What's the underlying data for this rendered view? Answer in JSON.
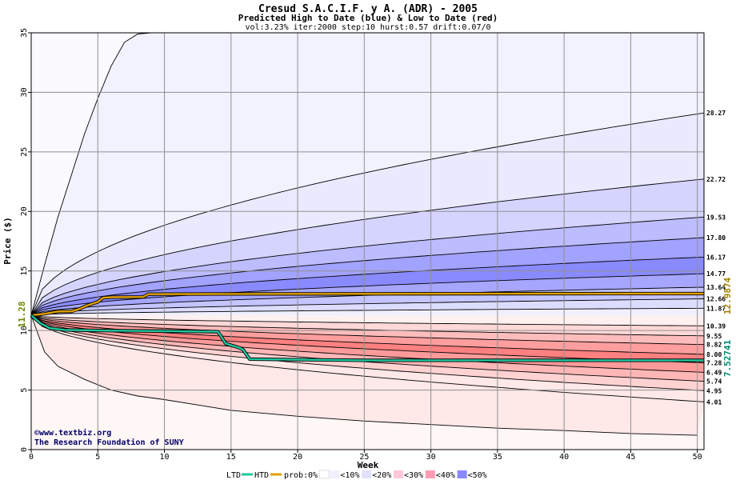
{
  "chart_data": {
    "type": "area",
    "title": "Cresud S.A.C.I.F. y A. (ADR) - 2005",
    "subtitle": "Predicted High to Date (blue) &  Low to Date (red)",
    "params": "vol:3.23% iter:2000 step:10 hurst:0.57 drift:0.07/0",
    "xlabel": "Week",
    "ylabel": "Price ($)",
    "xlim": [
      0,
      50.5
    ],
    "ylim": [
      0,
      35
    ],
    "x_ticks": [
      0,
      5,
      10,
      15,
      20,
      25,
      30,
      35,
      40,
      45,
      50
    ],
    "y_ticks": [
      0,
      5,
      10,
      15,
      20,
      25,
      30,
      35
    ],
    "grid": true,
    "start_price": 11.28,
    "start_price_label": "11.28",
    "end_levels": [
      28.27,
      22.72,
      19.53,
      17.8,
      16.17,
      14.77,
      13.64,
      12.66,
      11.87,
      10.39,
      9.55,
      8.82,
      8.0,
      7.28,
      6.49,
      5.74,
      4.95,
      4.01
    ],
    "end_level_labels": [
      "28.27",
      "22.72",
      "19.53",
      "17.80",
      "16.17",
      "14.77",
      "13.64",
      "12.66",
      "11.87",
      "10.39",
      "9.55",
      "8.82",
      "8.00",
      "7.28",
      "6.49",
      "5.74",
      "4.95",
      "4.01"
    ],
    "bands": {
      "high": [
        {
          "end": 35.0,
          "prob": "0%",
          "color": "#fafaff"
        },
        {
          "end": 28.27,
          "prob": "<10%",
          "color": "#eaeaff"
        },
        {
          "end": 22.72,
          "prob": "<20%",
          "color": "#d4d4ff"
        },
        {
          "end": 19.53,
          "prob": "<30%",
          "color": "#bcbcff"
        },
        {
          "end": 17.8,
          "prob": "<40%",
          "color": "#a2a2ff"
        },
        {
          "end": 16.17,
          "prob": "<50%",
          "color": "#8a8aff"
        },
        {
          "end": 14.77,
          "prob": "<40%",
          "color": "#a6a6ff"
        },
        {
          "end": 13.64,
          "prob": "<30%",
          "color": "#c4c4ff"
        },
        {
          "end": 12.66,
          "prob": "<20%",
          "color": "#dcdcff"
        },
        {
          "end": 11.87,
          "prob": "<10%",
          "color": "#f0f0ff"
        }
      ],
      "low": [
        {
          "end": 10.39,
          "prob": "<10%",
          "color": "#fff0f0"
        },
        {
          "end": 9.55,
          "prob": "<20%",
          "color": "#ffd8d8"
        },
        {
          "end": 8.82,
          "prob": "<30%",
          "color": "#ffbcbc"
        },
        {
          "end": 8.0,
          "prob": "<40%",
          "color": "#ff9e9e"
        },
        {
          "end": 7.28,
          "prob": "<50%",
          "color": "#ff8080"
        },
        {
          "end": 6.49,
          "prob": "<40%",
          "color": "#ff9a9a"
        },
        {
          "end": 5.74,
          "prob": "<30%",
          "color": "#ffb6b6"
        },
        {
          "end": 4.95,
          "prob": "<20%",
          "color": "#ffd2d2"
        },
        {
          "end": 4.01,
          "prob": "<10%",
          "color": "#ffe8e8"
        },
        {
          "end": 1.2,
          "prob": "0%",
          "color": "#fff6f6"
        }
      ]
    },
    "outer_high_curve": [
      [
        0,
        11.28
      ],
      [
        1,
        15.5
      ],
      [
        2,
        19.5
      ],
      [
        3,
        23.0
      ],
      [
        4,
        26.5
      ],
      [
        5,
        29.5
      ],
      [
        6,
        32.2
      ],
      [
        7,
        34.2
      ],
      [
        8,
        34.9
      ],
      [
        9,
        35.0
      ]
    ],
    "outer_low_curve": [
      [
        0,
        11.28
      ],
      [
        1,
        8.2
      ],
      [
        2,
        7.0
      ],
      [
        4,
        5.9
      ],
      [
        6,
        5.0
      ],
      [
        8,
        4.5
      ],
      [
        10,
        4.2
      ],
      [
        15,
        3.3
      ],
      [
        20,
        2.8
      ],
      [
        25,
        2.4
      ],
      [
        30,
        2.1
      ],
      [
        35,
        1.8
      ],
      [
        40,
        1.6
      ],
      [
        45,
        1.35
      ],
      [
        50,
        1.2
      ]
    ],
    "series": [
      {
        "name": "HTD",
        "color": "#e0a000",
        "points": [
          [
            0,
            11.28
          ],
          [
            1,
            11.4
          ],
          [
            2,
            11.6
          ],
          [
            3,
            11.6
          ],
          [
            3.6,
            11.8
          ],
          [
            4.2,
            12.1
          ],
          [
            5,
            12.4
          ],
          [
            5.4,
            12.75
          ],
          [
            6,
            12.8
          ],
          [
            8.4,
            12.82
          ],
          [
            8.8,
            13.05
          ],
          [
            15,
            13.07
          ],
          [
            25,
            13.08
          ],
          [
            35,
            13.09
          ],
          [
            45,
            13.1
          ],
          [
            50.5,
            13.1
          ]
        ]
      },
      {
        "name": "LTD",
        "color": "#20c8a0",
        "points": [
          [
            0,
            11.28
          ],
          [
            0.7,
            10.6
          ],
          [
            1.4,
            10.2
          ],
          [
            2.5,
            10.05
          ],
          [
            5,
            10.0
          ],
          [
            10,
            9.95
          ],
          [
            14,
            9.9
          ],
          [
            14.2,
            9.6
          ],
          [
            14.6,
            8.9
          ],
          [
            15.5,
            8.6
          ],
          [
            15.9,
            8.4
          ],
          [
            16.4,
            7.6
          ],
          [
            20,
            7.55
          ],
          [
            25,
            7.5
          ],
          [
            35,
            7.5
          ],
          [
            50.5,
            7.5
          ]
        ]
      }
    ],
    "end_values": {
      "htd": "12.9874",
      "ltd": "7.52741"
    }
  },
  "credits": {
    "line1": "©www.textbiz.org",
    "line2": "The Research Foundation of SUNY"
  },
  "legend": {
    "ltd_label": "LTD",
    "htd_label": "HTD",
    "prob_label": "prob:",
    "items": [
      {
        "label": "0%",
        "color": "#fafaff"
      },
      {
        "label": "<10%",
        "color": "#f0f0ff"
      },
      {
        "label": "<20%",
        "color": "#e0e0ff"
      },
      {
        "label": "<30%",
        "color": "#ffc8d8"
      },
      {
        "label": "<40%",
        "color": "#ff9cb4"
      },
      {
        "label": "<50%",
        "color": "#8888ff"
      }
    ]
  }
}
